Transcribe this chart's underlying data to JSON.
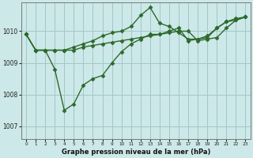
{
  "background_color": "#cde8e8",
  "grid_color": "#a0c8c8",
  "line_color": "#2d6a2d",
  "xlabel": "Graphe pression niveau de la mer (hPa)",
  "xlim": [
    -0.5,
    23.5
  ],
  "ylim": [
    1006.6,
    1010.9
  ],
  "yticks": [
    1007,
    1008,
    1009,
    1010
  ],
  "xticks": [
    0,
    1,
    2,
    3,
    4,
    5,
    6,
    7,
    8,
    9,
    10,
    11,
    12,
    13,
    14,
    15,
    16,
    17,
    18,
    19,
    20,
    21,
    22,
    23
  ],
  "line1_x": [
    0,
    1,
    2,
    3,
    4,
    5,
    6,
    7,
    8,
    9,
    10,
    11,
    12,
    13,
    14,
    15,
    16,
    17,
    18,
    19,
    20,
    21,
    22,
    23
  ],
  "line1_y": [
    1009.9,
    1009.4,
    1009.4,
    1009.4,
    1009.4,
    1009.4,
    1009.5,
    1009.55,
    1009.6,
    1009.65,
    1009.7,
    1009.75,
    1009.8,
    1009.85,
    1009.9,
    1009.95,
    1010.0,
    1010.0,
    1009.7,
    1009.75,
    1009.8,
    1010.1,
    1010.35,
    1010.45
  ],
  "line2_x": [
    0,
    1,
    2,
    3,
    4,
    5,
    6,
    7,
    8,
    9,
    10,
    11,
    12,
    13,
    14,
    15,
    16,
    17,
    18,
    19,
    20,
    21,
    22,
    23
  ],
  "line2_y": [
    1009.9,
    1009.4,
    1009.4,
    1008.8,
    1007.5,
    1007.7,
    1008.3,
    1008.5,
    1008.6,
    1009.0,
    1009.35,
    1009.6,
    1009.75,
    1009.9,
    1009.9,
    1010.0,
    1010.1,
    1009.7,
    1009.75,
    1009.8,
    1010.1,
    1010.3,
    1010.35,
    1010.45
  ],
  "line3_x": [
    0,
    1,
    2,
    3,
    4,
    5,
    6,
    7,
    8,
    9,
    10,
    11,
    12,
    13,
    14,
    15,
    16,
    17,
    18,
    19,
    20,
    21,
    22,
    23
  ],
  "line3_y": [
    1009.9,
    1009.4,
    1009.4,
    1009.4,
    1009.4,
    1009.5,
    1009.6,
    1009.7,
    1009.85,
    1009.95,
    1010.0,
    1010.15,
    1010.5,
    1010.75,
    1010.25,
    1010.15,
    1009.95,
    1009.75,
    1009.75,
    1009.85,
    1010.1,
    1010.3,
    1010.4,
    1010.45
  ],
  "marker": "D",
  "markersize": 2.5,
  "linewidth": 1.0
}
